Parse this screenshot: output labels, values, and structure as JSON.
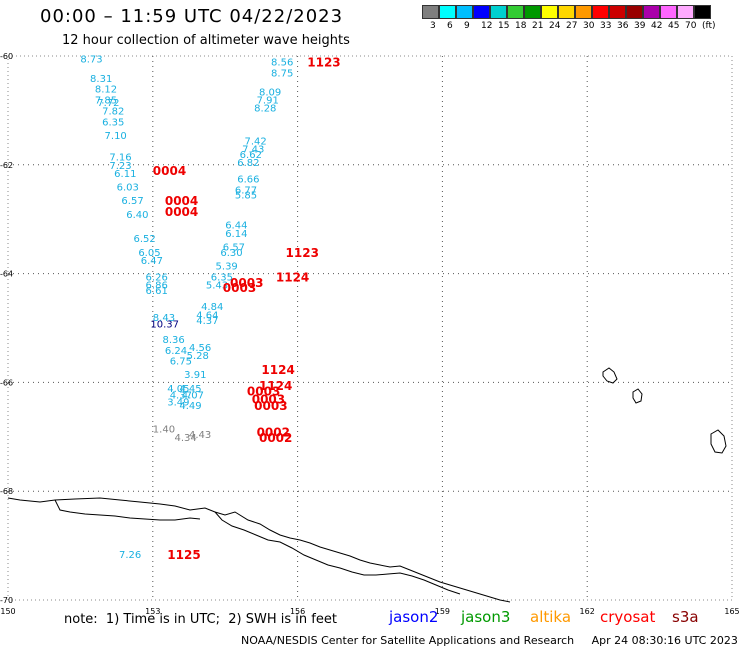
{
  "title": "00:00 – 11:59 UTC 04/22/2023",
  "subtitle": "12 hour collection of altimeter wave heights",
  "legend": {
    "colors": [
      "#7f7f7f",
      "#00ffff",
      "#00bfff",
      "#0000ff",
      "#00d0d0",
      "#33cc33",
      "#009900",
      "#ffff00",
      "#ffd700",
      "#ff9900",
      "#ff0000",
      "#cc0000",
      "#990000",
      "#aa00aa",
      "#ff66ff",
      "#ffaaff",
      "#000000"
    ],
    "labels": [
      "3",
      "6",
      "9",
      "12",
      "15",
      "18",
      "21",
      "24",
      "27",
      "30",
      "33",
      "36",
      "39",
      "42",
      "45",
      "70",
      "(ft)"
    ]
  },
  "axes": {
    "lon_ticks": [
      "150",
      "153",
      "156",
      "159",
      "162",
      "165"
    ],
    "lat_ticks": [
      "-60",
      "-62",
      "-64",
      "-66",
      "-68",
      "-70"
    ]
  },
  "map_data": {
    "lon_range": [
      150,
      165
    ],
    "lat_range": [
      -70,
      -60
    ],
    "wave_labels": [
      {
        "text": "8.73",
        "lon": 151.5,
        "lat": -60.05,
        "color": "#1ab0e0"
      },
      {
        "text": "8.31",
        "lon": 151.7,
        "lat": -60.4,
        "color": "#1ab0e0"
      },
      {
        "text": "8.12",
        "lon": 151.8,
        "lat": -60.6,
        "color": "#1ab0e0"
      },
      {
        "text": "7.85",
        "lon": 151.8,
        "lat": -60.8,
        "color": "#1ab0e0"
      },
      {
        "text": "7.72",
        "lon": 151.85,
        "lat": -60.85,
        "color": "#1ab0e0"
      },
      {
        "text": "7.82",
        "lon": 151.95,
        "lat": -61.0,
        "color": "#1ab0e0"
      },
      {
        "text": "6.35",
        "lon": 151.95,
        "lat": -61.2,
        "color": "#1ab0e0"
      },
      {
        "text": "7.10",
        "lon": 152.0,
        "lat": -61.45,
        "color": "#1ab0e0"
      },
      {
        "text": "7.16",
        "lon": 152.1,
        "lat": -61.85,
        "color": "#1ab0e0"
      },
      {
        "text": "7.23",
        "lon": 152.1,
        "lat": -62.0,
        "color": "#1ab0e0"
      },
      {
        "text": "6.11",
        "lon": 152.2,
        "lat": -62.15,
        "color": "#1ab0e0"
      },
      {
        "text": "6.03",
        "lon": 152.25,
        "lat": -62.4,
        "color": "#1ab0e0"
      },
      {
        "text": "6.57",
        "lon": 152.35,
        "lat": -62.65,
        "color": "#1ab0e0"
      },
      {
        "text": "6.40",
        "lon": 152.45,
        "lat": -62.9,
        "color": "#1ab0e0"
      },
      {
        "text": "6.52",
        "lon": 152.6,
        "lat": -63.35,
        "color": "#1ab0e0"
      },
      {
        "text": "6.05",
        "lon": 152.7,
        "lat": -63.6,
        "color": "#1ab0e0"
      },
      {
        "text": "6.47",
        "lon": 152.75,
        "lat": -63.75,
        "color": "#1ab0e0"
      },
      {
        "text": "6.26",
        "lon": 152.85,
        "lat": -64.05,
        "color": "#1ab0e0"
      },
      {
        "text": "6.86",
        "lon": 152.85,
        "lat": -64.2,
        "color": "#1ab0e0"
      },
      {
        "text": "6.61",
        "lon": 152.85,
        "lat": -64.3,
        "color": "#1ab0e0"
      },
      {
        "text": "8.43",
        "lon": 153.0,
        "lat": -64.8,
        "color": "#1ab0e0"
      },
      {
        "text": "10.37",
        "lon": 152.95,
        "lat": -64.92,
        "color": "#000080"
      },
      {
        "text": "8.36",
        "lon": 153.2,
        "lat": -65.2,
        "color": "#1ab0e0"
      },
      {
        "text": "6.24",
        "lon": 153.25,
        "lat": -65.4,
        "color": "#1ab0e0"
      },
      {
        "text": "6.75",
        "lon": 153.35,
        "lat": -65.6,
        "color": "#1ab0e0"
      },
      {
        "text": "8.56",
        "lon": 155.45,
        "lat": -60.1,
        "color": "#1ab0e0"
      },
      {
        "text": "8.75",
        "lon": 155.45,
        "lat": -60.3,
        "color": "#1ab0e0"
      },
      {
        "text": "8.09",
        "lon": 155.2,
        "lat": -60.65,
        "color": "#1ab0e0"
      },
      {
        "text": "7.91",
        "lon": 155.15,
        "lat": -60.8,
        "color": "#1ab0e0"
      },
      {
        "text": "8.28",
        "lon": 155.1,
        "lat": -60.95,
        "color": "#1ab0e0"
      },
      {
        "text": "7.42",
        "lon": 154.9,
        "lat": -61.55,
        "color": "#1ab0e0"
      },
      {
        "text": "7.43",
        "lon": 154.85,
        "lat": -61.7,
        "color": "#1ab0e0"
      },
      {
        "text": "6.62",
        "lon": 154.8,
        "lat": -61.8,
        "color": "#1ab0e0"
      },
      {
        "text": "6.82",
        "lon": 154.75,
        "lat": -61.95,
        "color": "#1ab0e0"
      },
      {
        "text": "6.66",
        "lon": 154.75,
        "lat": -62.25,
        "color": "#1ab0e0"
      },
      {
        "text": "6.77",
        "lon": 154.7,
        "lat": -62.45,
        "color": "#1ab0e0"
      },
      {
        "text": "5.85",
        "lon": 154.7,
        "lat": -62.55,
        "color": "#1ab0e0"
      },
      {
        "text": "6.44",
        "lon": 154.5,
        "lat": -63.1,
        "color": "#1ab0e0"
      },
      {
        "text": "6.14",
        "lon": 154.5,
        "lat": -63.25,
        "color": "#1ab0e0"
      },
      {
        "text": "6.57",
        "lon": 154.45,
        "lat": -63.5,
        "color": "#1ab0e0"
      },
      {
        "text": "6.30",
        "lon": 154.4,
        "lat": -63.6,
        "color": "#1ab0e0"
      },
      {
        "text": "5.39",
        "lon": 154.3,
        "lat": -63.85,
        "color": "#1ab0e0"
      },
      {
        "text": "6.35",
        "lon": 154.2,
        "lat": -64.05,
        "color": "#1ab0e0"
      },
      {
        "text": "5.43",
        "lon": 154.1,
        "lat": -64.2,
        "color": "#1ab0e0"
      },
      {
        "text": "4.84",
        "lon": 154.0,
        "lat": -64.6,
        "color": "#1ab0e0"
      },
      {
        "text": "4.64",
        "lon": 153.9,
        "lat": -64.75,
        "color": "#1ab0e0"
      },
      {
        "text": "4.37",
        "lon": 153.9,
        "lat": -64.85,
        "color": "#1ab0e0"
      },
      {
        "text": "4.56",
        "lon": 153.75,
        "lat": -65.35,
        "color": "#1ab0e0"
      },
      {
        "text": "5.28",
        "lon": 153.7,
        "lat": -65.5,
        "color": "#1ab0e0"
      },
      {
        "text": "3.91",
        "lon": 153.65,
        "lat": -65.85,
        "color": "#1ab0e0"
      },
      {
        "text": "4.05",
        "lon": 153.3,
        "lat": -66.1,
        "color": "#1ab0e0"
      },
      {
        "text": "4.45",
        "lon": 153.55,
        "lat": -66.1,
        "color": "#1ab0e0"
      },
      {
        "text": "4.37",
        "lon": 153.35,
        "lat": -66.22,
        "color": "#1ab0e0"
      },
      {
        "text": "4.07",
        "lon": 153.6,
        "lat": -66.22,
        "color": "#1ab0e0"
      },
      {
        "text": "3.49",
        "lon": 153.3,
        "lat": -66.35,
        "color": "#1ab0e0"
      },
      {
        "text": "4.49",
        "lon": 153.55,
        "lat": -66.42,
        "color": "#1ab0e0"
      },
      {
        "text": "1.40",
        "lon": 153.0,
        "lat": -66.85,
        "color": "#808080"
      },
      {
        "text": "4.34",
        "lon": 153.45,
        "lat": -67.0,
        "color": "#808080"
      },
      {
        "text": "4.43",
        "lon": 153.75,
        "lat": -66.95,
        "color": "#808080"
      },
      {
        "text": "7.26",
        "lon": 152.3,
        "lat": -69.15,
        "color": "#1ab0e0"
      }
    ],
    "time_labels": [
      {
        "text": "1123",
        "lon": 156.2,
        "lat": -60.1,
        "color": "#ee0000"
      },
      {
        "text": "0004",
        "lon": 153.0,
        "lat": -62.1,
        "color": "#ee0000"
      },
      {
        "text": "0004",
        "lon": 153.25,
        "lat": -62.65,
        "color": "#ee0000"
      },
      {
        "text": "0004",
        "lon": 153.25,
        "lat": -62.85,
        "color": "#ee0000"
      },
      {
        "text": "1123",
        "lon": 155.75,
        "lat": -63.6,
        "color": "#ee0000"
      },
      {
        "text": "1124",
        "lon": 155.55,
        "lat": -64.05,
        "color": "#ee0000"
      },
      {
        "text": "0003",
        "lon": 154.6,
        "lat": -64.15,
        "color": "#ee0000"
      },
      {
        "text": "0003",
        "lon": 154.45,
        "lat": -64.25,
        "color": "#ee0000"
      },
      {
        "text": "1124",
        "lon": 155.25,
        "lat": -65.75,
        "color": "#ee0000"
      },
      {
        "text": "1124",
        "lon": 155.2,
        "lat": -66.05,
        "color": "#ee0000"
      },
      {
        "text": "0003",
        "lon": 154.95,
        "lat": -66.15,
        "color": "#ee0000"
      },
      {
        "text": "0003",
        "lon": 155.05,
        "lat": -66.3,
        "color": "#ee0000"
      },
      {
        "text": "0003",
        "lon": 155.1,
        "lat": -66.42,
        "color": "#ee0000"
      },
      {
        "text": "0002",
        "lon": 155.15,
        "lat": -66.9,
        "color": "#ee0000"
      },
      {
        "text": "0002",
        "lon": 155.2,
        "lat": -67.0,
        "color": "#ee0000"
      },
      {
        "text": "1125",
        "lon": 153.3,
        "lat": -69.15,
        "color": "#ee0000"
      }
    ]
  },
  "footer": {
    "note": "note:  1) Time is in UTC;  2) SWH is in feet",
    "satellites": [
      {
        "name": "jason2",
        "color": "#0000ff"
      },
      {
        "name": "jason3",
        "color": "#009900"
      },
      {
        "name": "altika",
        "color": "#ff9900"
      },
      {
        "name": "cryosat",
        "color": "#ff0000"
      },
      {
        "name": "s3a",
        "color": "#880000"
      }
    ],
    "credit": "NOAA/NESDIS Center for Satellite Applications and Research     Apr 24 08:30:16 UTC 2023"
  }
}
